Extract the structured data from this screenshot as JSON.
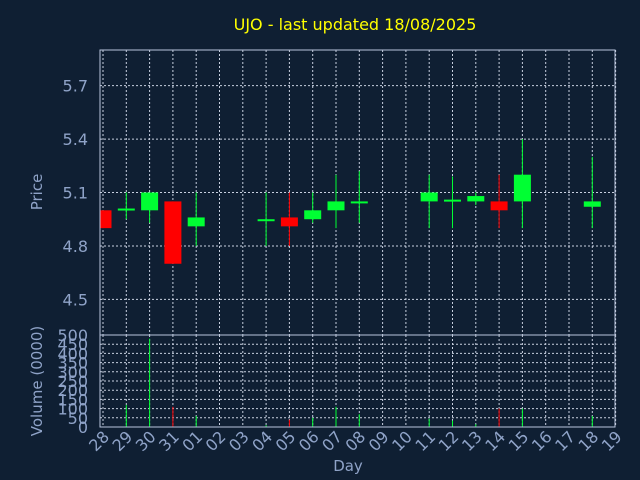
{
  "title": "UJO - last updated 18/08/2025",
  "colors": {
    "background": "#0f1f33",
    "up": "#00ff33",
    "down": "#ff0000",
    "title": "#ffff00",
    "axis_text": "#8fa3c8"
  },
  "chart_data": [
    {
      "type": "candlestick",
      "xlabel": "",
      "ylabel": "Price",
      "ylim": [
        4.3,
        5.9
      ],
      "yticks": [
        4.5,
        4.8,
        5.1,
        5.4,
        5.7
      ],
      "grid": true,
      "days": [
        "28",
        "29",
        "30",
        "31",
        "01",
        "02",
        "03",
        "04",
        "05",
        "06",
        "07",
        "08",
        "09",
        "10",
        "11",
        "12",
        "13",
        "14",
        "15",
        "16",
        "17",
        "18",
        "19"
      ],
      "candles": [
        {
          "day": "28",
          "open": 5.0,
          "high": 5.0,
          "low": 4.9,
          "close": 4.9
        },
        {
          "day": "29",
          "open": 5.0,
          "high": 5.1,
          "low": 4.95,
          "close": 5.01
        },
        {
          "day": "30",
          "open": 5.0,
          "high": 5.1,
          "low": 4.93,
          "close": 5.1
        },
        {
          "day": "31",
          "open": 5.05,
          "high": 5.05,
          "low": 4.7,
          "close": 4.7
        },
        {
          "day": "01",
          "open": 4.91,
          "high": 5.1,
          "low": 4.8,
          "close": 4.96
        },
        {
          "day": "04",
          "open": 4.94,
          "high": 5.1,
          "low": 4.8,
          "close": 4.95
        },
        {
          "day": "05",
          "open": 4.96,
          "high": 5.1,
          "low": 4.8,
          "close": 4.91
        },
        {
          "day": "06",
          "open": 4.95,
          "high": 5.1,
          "low": 4.93,
          "close": 5.0
        },
        {
          "day": "07",
          "open": 5.0,
          "high": 5.2,
          "low": 4.9,
          "close": 5.05
        },
        {
          "day": "08",
          "open": 5.04,
          "high": 5.22,
          "low": 4.93,
          "close": 5.05
        },
        {
          "day": "11",
          "open": 5.05,
          "high": 5.2,
          "low": 4.9,
          "close": 5.1
        },
        {
          "day": "12",
          "open": 5.05,
          "high": 5.19,
          "low": 4.9,
          "close": 5.06
        },
        {
          "day": "13",
          "open": 5.05,
          "high": 5.1,
          "low": 5.03,
          "close": 5.08
        },
        {
          "day": "14",
          "open": 5.05,
          "high": 5.2,
          "low": 4.9,
          "close": 5.0
        },
        {
          "day": "15",
          "open": 5.05,
          "high": 5.4,
          "low": 4.9,
          "close": 5.2
        },
        {
          "day": "18",
          "open": 5.02,
          "high": 5.3,
          "low": 4.9,
          "close": 5.05
        }
      ]
    },
    {
      "type": "bar",
      "xlabel": "Day",
      "ylabel": "Volume (0000)",
      "ylim": [
        0,
        500
      ],
      "yticks": [
        0,
        50,
        100,
        150,
        200,
        250,
        300,
        350,
        400,
        450,
        500
      ],
      "grid": true,
      "volumes": [
        {
          "day": "28",
          "value": 3,
          "dir": "down"
        },
        {
          "day": "29",
          "value": 120,
          "dir": "up"
        },
        {
          "day": "30",
          "value": 480,
          "dir": "up"
        },
        {
          "day": "31",
          "value": 110,
          "dir": "down"
        },
        {
          "day": "01",
          "value": 60,
          "dir": "up"
        },
        {
          "day": "04",
          "value": 10,
          "dir": "up"
        },
        {
          "day": "05",
          "value": 40,
          "dir": "down"
        },
        {
          "day": "06",
          "value": 50,
          "dir": "up"
        },
        {
          "day": "07",
          "value": 110,
          "dir": "up"
        },
        {
          "day": "08",
          "value": 70,
          "dir": "up"
        },
        {
          "day": "11",
          "value": 45,
          "dir": "up"
        },
        {
          "day": "12",
          "value": 35,
          "dir": "up"
        },
        {
          "day": "13",
          "value": 15,
          "dir": "up"
        },
        {
          "day": "14",
          "value": 100,
          "dir": "down"
        },
        {
          "day": "15",
          "value": 100,
          "dir": "up"
        },
        {
          "day": "18",
          "value": 60,
          "dir": "up"
        }
      ]
    }
  ]
}
